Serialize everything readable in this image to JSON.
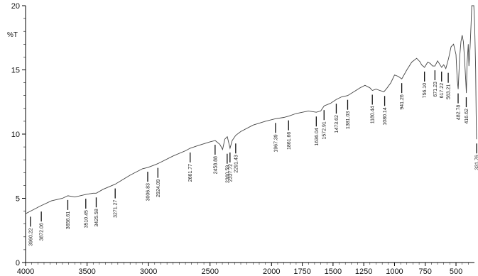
{
  "chart_data": {
    "type": "line",
    "title": "",
    "xlabel": "",
    "ylabel": "%T",
    "xlim": [
      4000,
      350
    ],
    "ylim": [
      0,
      20
    ],
    "x_ticks": [
      "4000",
      "3500",
      "3000",
      "2500",
      "2000",
      "1750",
      "1500",
      "1250",
      "1000",
      "750",
      "500"
    ],
    "y_ticks": [
      "0",
      "5",
      "10",
      "15",
      "20"
    ],
    "grid": false,
    "series": [
      {
        "name": "",
        "x": [
          4000,
          3960,
          3880,
          3790,
          3700,
          3656,
          3600,
          3510,
          3450,
          3425,
          3370,
          3271,
          3150,
          3050,
          3006,
          2950,
          2924,
          2800,
          2700,
          2661,
          2600,
          2500,
          2458,
          2420,
          2398,
          2380,
          2360,
          2337,
          2320,
          2291,
          2250,
          2150,
          2050,
          1967,
          1900,
          1861,
          1800,
          1700,
          1636,
          1600,
          1572,
          1520,
          1473,
          1430,
          1381,
          1330,
          1280,
          1240,
          1200,
          1180,
          1150,
          1120,
          1086,
          1060,
          1030,
          1000,
          970,
          941,
          900,
          860,
          820,
          790,
          780,
          756,
          730,
          710,
          690,
          671,
          650,
          630,
          617,
          600,
          583,
          560,
          540,
          520,
          500,
          490,
          482,
          470,
          460,
          450,
          440,
          430,
          420,
          416,
          410,
          400,
          395,
          385,
          378,
          372,
          365,
          355,
          348,
          340,
          336,
          333
        ],
        "values": [
          3.8,
          4.0,
          4.4,
          4.8,
          5.0,
          5.2,
          5.1,
          5.3,
          5.4,
          5.4,
          5.7,
          6.1,
          6.8,
          7.3,
          7.4,
          7.6,
          7.7,
          8.3,
          8.7,
          8.9,
          9.1,
          9.4,
          9.5,
          9.2,
          8.8,
          9.6,
          9.8,
          8.9,
          9.5,
          9.9,
          10.2,
          10.7,
          11.0,
          11.2,
          11.3,
          11.4,
          11.6,
          11.8,
          11.7,
          11.8,
          12.2,
          12.4,
          12.7,
          12.9,
          13.0,
          13.3,
          13.6,
          13.8,
          13.6,
          13.4,
          13.5,
          13.4,
          13.3,
          13.6,
          14.0,
          14.6,
          14.5,
          14.3,
          15.0,
          15.6,
          15.9,
          15.6,
          15.4,
          15.2,
          15.6,
          15.5,
          15.3,
          15.3,
          15.7,
          15.4,
          15.2,
          15.4,
          15.1,
          15.9,
          16.8,
          17.0,
          16.2,
          14.2,
          13.5,
          16.0,
          17.2,
          17.7,
          17.2,
          15.8,
          14.0,
          13.2,
          15.5,
          17.0,
          15.3,
          16.8,
          18.5,
          20.0,
          20.0,
          20.0,
          18.5,
          15.0,
          11.5,
          9.6
        ]
      }
    ],
    "peaks": [
      {
        "x": 3960.22,
        "label": "3960.22",
        "y": 3.9
      },
      {
        "x": 3872.06,
        "label": "3872.06",
        "y": 4.3
      },
      {
        "x": 3656.61,
        "label": "3656.61",
        "y": 5.2
      },
      {
        "x": 3510.45,
        "label": "3510.45",
        "y": 5.3
      },
      {
        "x": 3425.58,
        "label": "3425.58",
        "y": 5.4
      },
      {
        "x": 3271.27,
        "label": "3271.27",
        "y": 6.1
      },
      {
        "x": 3006.83,
        "label": "3006.83",
        "y": 7.4
      },
      {
        "x": 2924.09,
        "label": "2924.09",
        "y": 7.7
      },
      {
        "x": 2661.77,
        "label": "2661.77",
        "y": 8.9
      },
      {
        "x": 2458.88,
        "label": "2458.88",
        "y": 9.5
      },
      {
        "x": 2360.59,
        "label": "2360.59",
        "y": 8.8
      },
      {
        "x": 2337.72,
        "label": "2337.72",
        "y": 8.9
      },
      {
        "x": 2291.43,
        "label": "2291.43",
        "y": 9.6
      },
      {
        "x": 1967.39,
        "label": "1967.39",
        "y": 11.2
      },
      {
        "x": 1861.66,
        "label": "1861.66",
        "y": 11.4
      },
      {
        "x": 1636.04,
        "label": "1636.04",
        "y": 11.7
      },
      {
        "x": 1572.91,
        "label": "1572.91",
        "y": 12.2
      },
      {
        "x": 1473.62,
        "label": "1473.62",
        "y": 12.7
      },
      {
        "x": 1381.03,
        "label": "1381.03",
        "y": 13.0
      },
      {
        "x": 1180.44,
        "label": "1180.44",
        "y": 13.4
      },
      {
        "x": 1080.14,
        "label": "1080.14",
        "y": 13.3
      },
      {
        "x": 941.26,
        "label": "941.26",
        "y": 14.3
      },
      {
        "x": 756.1,
        "label": "756.10",
        "y": 15.2
      },
      {
        "x": 671.23,
        "label": "671.23",
        "y": 15.3
      },
      {
        "x": 617.22,
        "label": "617.22",
        "y": 15.2
      },
      {
        "x": 563.21,
        "label": "563.21",
        "y": 15.1
      },
      {
        "x": 482.78,
        "label": "482.78",
        "y": 13.5
      },
      {
        "x": 416.62,
        "label": "416.62",
        "y": 13.2
      },
      {
        "x": 331.76,
        "label": "331.76",
        "y": 9.6
      }
    ]
  }
}
